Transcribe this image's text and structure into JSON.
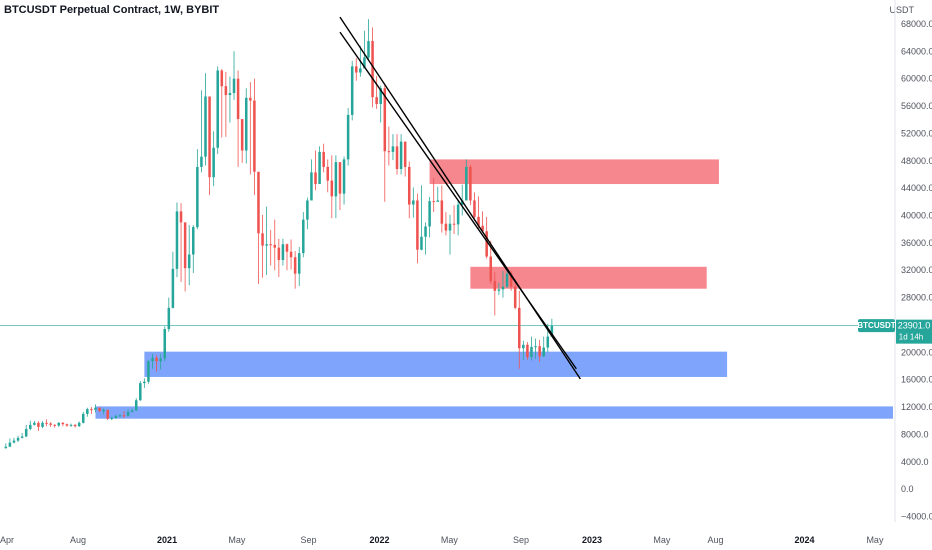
{
  "header": {
    "title": "BTCUSDT Perpetual Contract, 1W, BYBIT",
    "currency": "USDT"
  },
  "price_tag": {
    "symbol": "BTCUSDT",
    "price": "23901.0",
    "countdown": "1d 14h"
  },
  "colors": {
    "up": "#26a69a",
    "down": "#ef5350",
    "supply_zone": "#f7878f",
    "demand_zone": "#7ea5fb",
    "last_price_line": "#26a69a",
    "trendline": "#000000"
  },
  "chart_data": {
    "type": "candlestick",
    "title": "BTCUSDT Perpetual Contract, 1W, BYBIT",
    "ylabel": "USDT",
    "ylim": [
      -4800,
      71500
    ],
    "xlim": [
      "2020-03-20",
      "2024-06-01"
    ],
    "y_ticks": [
      "68000.0",
      "64000.0",
      "60000.0",
      "56000.0",
      "52000.0",
      "48000.0",
      "44000.0",
      "40000.0",
      "36000.0",
      "32000.0",
      "28000.0",
      "24000.0",
      "20000.0",
      "16000.0",
      "12000.0",
      "8000.0",
      "4000.0",
      "0.0",
      "−4000.0"
    ],
    "x_ticks": [
      {
        "label": "Apr",
        "date": "2020-04-01",
        "year": false
      },
      {
        "label": "Aug",
        "date": "2020-08-01",
        "year": false
      },
      {
        "label": "2021",
        "date": "2021-01-01",
        "year": true
      },
      {
        "label": "May",
        "date": "2021-05-01",
        "year": false
      },
      {
        "label": "Sep",
        "date": "2021-09-01",
        "year": false
      },
      {
        "label": "2022",
        "date": "2022-01-01",
        "year": true
      },
      {
        "label": "May",
        "date": "2022-05-01",
        "year": false
      },
      {
        "label": "Sep",
        "date": "2022-09-01",
        "year": false
      },
      {
        "label": "2023",
        "date": "2023-01-01",
        "year": true
      },
      {
        "label": "May",
        "date": "2023-05-01",
        "year": false
      },
      {
        "label": "Aug",
        "date": "2023-08-01",
        "year": false
      },
      {
        "label": "2024",
        "date": "2024-01-01",
        "year": true
      },
      {
        "label": "May",
        "date": "2024-05-01",
        "year": false
      }
    ],
    "candles_start": "2020-03-30",
    "candle_interval_days": 7,
    "closes": [
      6200,
      6800,
      7100,
      7500,
      7700,
      8800,
      9400,
      9700,
      9100,
      9700,
      9600,
      9400,
      9300,
      9700,
      9500,
      9300,
      9400,
      9200,
      9700,
      11000,
      11700,
      11600,
      11900,
      11400,
      11600,
      10300,
      10400,
      10700,
      10800,
      10700,
      11300,
      11500,
      13000,
      15500,
      15700,
      18700,
      19200,
      18700,
      19100,
      23400,
      26500,
      32200,
      40600,
      39000,
      32300,
      34300,
      38300,
      47100,
      48600,
      57400,
      45600,
      49900,
      61200,
      58900,
      57600,
      57900,
      60000,
      54100,
      49500,
      57200,
      56800,
      46400,
      37400,
      35600,
      35800,
      35700,
      35300,
      33500,
      35800,
      34700,
      33900,
      31500,
      34500,
      39400,
      42200,
      46300,
      44600,
      49300,
      47100,
      45100,
      42800,
      47800,
      43200,
      48200,
      54700,
      61800,
      60900,
      61500,
      63100,
      65500,
      57300,
      56300,
      58600,
      49400,
      49300,
      50100,
      46800,
      50800,
      47100,
      41600,
      42200,
      35000,
      36900,
      38400,
      42100,
      42000,
      42200,
      38800,
      37800,
      38800,
      38700,
      41600,
      42200,
      47100,
      42200,
      39800,
      38500,
      37700,
      34000,
      30400,
      29000,
      29200,
      29600,
      31500,
      29600,
      26500,
      20600,
      21100,
      19300,
      20800,
      20900,
      19400,
      20700,
      22300,
      23900
    ],
    "highs": [
      6700,
      7400,
      7500,
      7800,
      8200,
      9400,
      10000,
      10000,
      9900,
      9950,
      10200,
      9800,
      9500,
      9800,
      9800,
      9600,
      9600,
      9500,
      9900,
      11300,
      11900,
      12000,
      12400,
      12000,
      11800,
      11500,
      10600,
      10900,
      11000,
      11400,
      11700,
      11800,
      13300,
      15800,
      16200,
      18900,
      19800,
      19600,
      19800,
      23800,
      28000,
      34700,
      41900,
      41800,
      38700,
      38600,
      38600,
      49700,
      58300,
      60800,
      56000,
      52300,
      61800,
      61400,
      61000,
      60300,
      64000,
      61200,
      51800,
      58600,
      59500,
      60000,
      42400,
      40100,
      41300,
      37900,
      39400,
      36600,
      36600,
      35900,
      36500,
      34800,
      35400,
      40500,
      42600,
      48200,
      49500,
      50100,
      50500,
      48200,
      48800,
      48800,
      45400,
      48600,
      55700,
      62600,
      63000,
      64800,
      67000,
      68700,
      67500,
      60400,
      59000,
      59100,
      53000,
      51900,
      51900,
      51900,
      48600,
      47900,
      44100,
      43200,
      44400,
      39000,
      42700,
      45500,
      44200,
      44400,
      40500,
      40100,
      41500,
      42300,
      44500,
      48200,
      47400,
      43400,
      42800,
      40600,
      39800,
      36300,
      31700,
      30200,
      31900,
      32300,
      31900,
      30700,
      29000,
      21700,
      21500,
      22300,
      22000,
      21800,
      22300,
      24200,
      24900
    ],
    "lows": [
      5900,
      6200,
      6700,
      6900,
      7400,
      7600,
      8600,
      9300,
      8500,
      8900,
      9200,
      9100,
      9000,
      9100,
      9200,
      9100,
      9100,
      9000,
      9100,
      9600,
      10600,
      11000,
      11200,
      11300,
      11000,
      10100,
      10100,
      10300,
      10500,
      10400,
      10600,
      11200,
      11400,
      12900,
      14800,
      15400,
      17600,
      17200,
      17500,
      18700,
      23000,
      26400,
      31000,
      30300,
      28900,
      29800,
      31600,
      38000,
      46300,
      47300,
      43000,
      44300,
      49000,
      51400,
      51500,
      53600,
      56900,
      47100,
      47700,
      47600,
      46000,
      43000,
      30000,
      30900,
      31300,
      32700,
      32000,
      31000,
      32700,
      32000,
      32100,
      29300,
      29700,
      33900,
      38000,
      42300,
      43700,
      44800,
      46300,
      43400,
      39600,
      39600,
      40800,
      41600,
      47300,
      53900,
      59700,
      60300,
      61800,
      62700,
      55800,
      55600,
      53600,
      42000,
      47300,
      48100,
      46000,
      46000,
      45700,
      39600,
      39700,
      33000,
      34900,
      34300,
      36800,
      40500,
      42100,
      37500,
      37100,
      34300,
      37300,
      37100,
      40000,
      42200,
      41500,
      39200,
      38100,
      37500,
      33700,
      30000,
      25400,
      28400,
      28000,
      29400,
      29000,
      26300,
      17600,
      18900,
      18900,
      18800,
      19000,
      18600,
      19300,
      20000,
      22400
    ],
    "last_price": 23901.0,
    "zones": [
      {
        "type": "supply",
        "x_start": "2022-03-28",
        "x_end": "2023-08-07",
        "y_low": 44600,
        "y_high": 48200
      },
      {
        "type": "supply",
        "x_start": "2022-06-06",
        "x_end": "2023-07-17",
        "y_low": 29300,
        "y_high": 32500
      },
      {
        "type": "demand",
        "x_start": "2020-11-23",
        "x_end": "2023-08-21",
        "y_low": 16400,
        "y_high": 20100
      },
      {
        "type": "demand",
        "x_start": "2020-08-31",
        "x_end": "2024-06-01",
        "y_low": 10300,
        "y_high": 12100
      }
    ],
    "trendlines": [
      {
        "start": [
          "2021-10-25",
          69000
        ],
        "end": [
          "2022-12-12",
          16100
        ]
      },
      {
        "start": [
          "2021-10-25",
          66800
        ],
        "end": [
          "2022-12-05",
          17600
        ]
      }
    ]
  }
}
